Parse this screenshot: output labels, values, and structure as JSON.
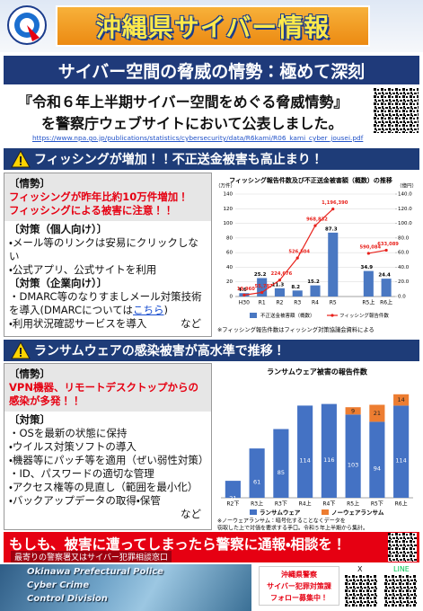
{
  "header": {
    "title": "沖縄県サイバー情報"
  },
  "banner": "サイバー空間の脅威の情勢：極めて深刻",
  "announcement": {
    "line1": "『令和６年上半期サイバー空間をめぐる脅威情勢』",
    "line2": "を警察庁ウェブサイトにおいて公表しました。",
    "url": "https://www.npa.go.jp/publications/statistics/cybersecurity/data/R6kami/R06_kami_cyber_jousei.pdf"
  },
  "sections": [
    {
      "heading": "フィッシングが増加！！不正送金被害も高止まり！",
      "situation": {
        "label": "〔情勢〕",
        "lines": [
          "フィッシングが昨年比約10万件増加！",
          "フィッシングによる被害に注意！！"
        ]
      },
      "measures": [
        {
          "label": "〔対策（個人向け）〕",
          "items": [
            "・メール等のリンクは安易にクリックしない",
            "・公式アプリ、公式サイトを利用"
          ]
        },
        {
          "label": "〔対策（企業向け）〕",
          "items": [
            "・DMARC等のなりすましメール対策技術を導入(DMARCについては",
            "・利用状況確認サービスを導入"
          ],
          "link": "こちら",
          "link_close": ")"
        }
      ],
      "etc": "など"
    },
    {
      "heading": "ランサムウェアの感染被害が高水準で推移！",
      "situation": {
        "label": "〔情勢〕",
        "lines": [
          "VPN機器、リモートデスクトップからの感染が多発！！"
        ]
      },
      "measures": [
        {
          "label": "〔対策〕",
          "items": [
            "・OSを最新の状態に保持",
            "・ウイルス対策ソフトの導入",
            "・機器等にパッチ等を適用（ぜい弱性対策）",
            "・ID、パスワードの適切な管理",
            "・アクセス権等の見直し（範囲を最小化）",
            "・バックアップデータの取得・保管"
          ]
        }
      ],
      "etc": "など"
    }
  ],
  "chart_data": [
    {
      "type": "combo",
      "title": "フィッシング報告件数及び不正送金被害額（概数）の推移",
      "ylabel": "（万件）",
      "y2label": "（億円）",
      "categories": [
        "H30",
        "R1",
        "R2",
        "R3",
        "R4",
        "R5",
        null,
        "R5上",
        "R6上"
      ],
      "series": [
        {
          "name": "不正送金被害額（概数）",
          "kind": "bar",
          "axis": "y2",
          "color": "#4a78c2",
          "values": [
            4.6,
            25.2,
            11.3,
            8.2,
            15.2,
            87.3,
            null,
            34.9,
            24.4
          ]
        },
        {
          "name": "フィッシング報告件数",
          "kind": "line",
          "color": "#e8211b",
          "values": [
            1.996,
            5.5787,
            22.4676,
            52.6504,
            96.8832,
            119.639,
            null,
            59.0084,
            63.3089
          ],
          "value_labels": [
            "19,960",
            "55,787",
            "224,676",
            "526,504",
            "968,832",
            "1,196,390",
            null,
            "590,084",
            "633,089"
          ]
        }
      ],
      "ylim": [
        0,
        140
      ],
      "yticks": [
        0,
        20,
        40,
        60,
        80,
        100,
        120,
        140
      ],
      "y2lim": [
        0,
        140
      ],
      "y2ticks": [
        {
          "value": 0,
          "label": "0.0"
        },
        {
          "value": 20,
          "label": "20.0"
        },
        {
          "value": 40,
          "label": "40.0"
        },
        {
          "value": 60,
          "label": "60.0"
        },
        {
          "value": 80,
          "label": "80.0"
        },
        {
          "value": 100,
          "label": "100.0"
        },
        {
          "value": 120,
          "label": "120.0"
        },
        {
          "value": 140,
          "label": "140.0"
        }
      ],
      "grid": true,
      "note": "※フィッシング報告件数はフィッシング対策協議会資料による"
    },
    {
      "type": "stacked-bar",
      "title": "ランサムウェア被害の報告件数",
      "categories": [
        "R2下",
        "R3上",
        "R3下",
        "R4上",
        "R4下",
        "R5上",
        "R5下",
        "R6上"
      ],
      "series": [
        {
          "name": "ランサムウェア",
          "color": "#4472c4",
          "values": [
            21,
            61,
            85,
            114,
            116,
            103,
            94,
            114
          ]
        },
        {
          "name": "ノーウェアランサム",
          "color": "#ed7d31",
          "values": [
            null,
            null,
            null,
            null,
            null,
            9,
            21,
            14
          ]
        }
      ],
      "ylim": [
        0,
        140
      ],
      "note_lines": [
        "※ノーウェアランサム：暗号化することなくデータを",
        "窃取した上で対価を要求する手口。令和５年上半期から集計。"
      ]
    }
  ],
  "contact": {
    "headline": "もしも、被害に遭ってしまったら警察に通報・相談を！",
    "sub": "最寄りの警察署又はサイバー犯罪相談窓口"
  },
  "footer": {
    "org": [
      "Okinawa Prefectural Police",
      "Cyber Crime",
      "Control Division"
    ],
    "sns": [
      "沖縄県警察",
      "サイバー犯罪対策課",
      "フォロー募集中！"
    ],
    "x": "X",
    "line": "LINE"
  }
}
